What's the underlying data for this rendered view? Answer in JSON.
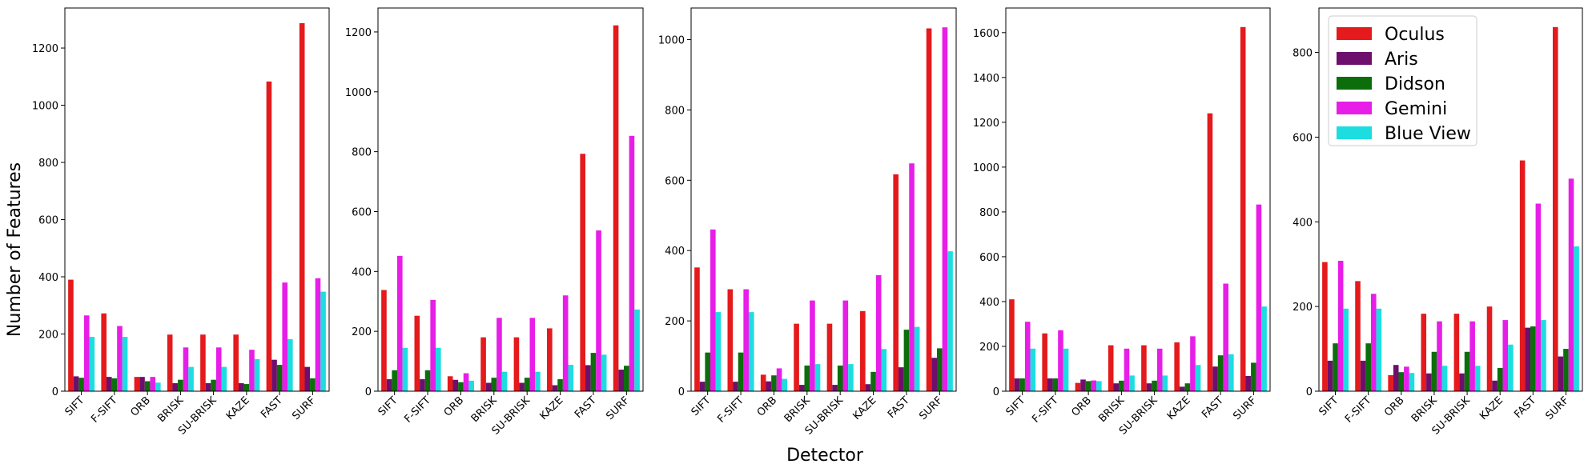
{
  "figure": {
    "ylabel": "Number of Features",
    "xlabel": "Detector"
  },
  "legend": {
    "placement": "top-left of fifth panel",
    "entries": [
      "Oculus",
      "Aris",
      "Didson",
      "Gemini",
      "Blue View"
    ]
  },
  "colors": {
    "Oculus": "#e41a1c",
    "Aris": "#6e0f6e",
    "Didson": "#0b6e0b",
    "Gemini": "#e71ee7",
    "Blue View": "#1ddde0"
  },
  "chart_data": [
    {
      "type": "bar",
      "categories": [
        "SIFT",
        "F-SIFT",
        "ORB",
        "BRISK",
        "SU-BRISK",
        "KAZE",
        "FAST",
        "SURF"
      ],
      "ylim": [
        0,
        1340
      ],
      "yticks": [
        0,
        200,
        400,
        600,
        800,
        1000,
        1200
      ],
      "series": [
        {
          "name": "Oculus",
          "values": [
            390,
            272,
            50,
            198,
            198,
            198,
            1083,
            1287
          ]
        },
        {
          "name": "Aris",
          "values": [
            52,
            50,
            50,
            28,
            28,
            28,
            110,
            85
          ]
        },
        {
          "name": "Didson",
          "values": [
            47,
            45,
            35,
            40,
            40,
            25,
            92,
            45
          ]
        },
        {
          "name": "Gemini",
          "values": [
            265,
            228,
            50,
            153,
            153,
            145,
            380,
            395
          ]
        },
        {
          "name": "Blue View",
          "values": [
            190,
            190,
            30,
            85,
            85,
            112,
            182,
            348
          ]
        }
      ]
    },
    {
      "type": "bar",
      "categories": [
        "SIFT",
        "F-SIFT",
        "ORB",
        "BRISK",
        "SU-BRISK",
        "KAZE",
        "FAST",
        "SURF"
      ],
      "ylim": [
        0,
        1280
      ],
      "yticks": [
        0,
        200,
        400,
        600,
        800,
        1000,
        1200
      ],
      "series": [
        {
          "name": "Oculus",
          "values": [
            338,
            252,
            50,
            180,
            180,
            210,
            793,
            1222
          ]
        },
        {
          "name": "Aris",
          "values": [
            40,
            40,
            38,
            28,
            28,
            20,
            87,
            72
          ]
        },
        {
          "name": "Didson",
          "values": [
            70,
            70,
            30,
            45,
            45,
            40,
            128,
            85
          ]
        },
        {
          "name": "Gemini",
          "values": [
            452,
            305,
            60,
            245,
            245,
            320,
            537,
            853
          ]
        },
        {
          "name": "Blue View",
          "values": [
            145,
            145,
            35,
            65,
            65,
            88,
            122,
            273
          ]
        }
      ]
    },
    {
      "type": "bar",
      "categories": [
        "SIFT",
        "F-SIFT",
        "ORB",
        "BRISK",
        "SU-BRISK",
        "KAZE",
        "FAST",
        "SURF"
      ],
      "ylim": [
        0,
        1090
      ],
      "yticks": [
        0,
        200,
        400,
        600,
        800,
        1000
      ],
      "series": [
        {
          "name": "Oculus",
          "values": [
            352,
            290,
            47,
            192,
            192,
            228,
            617,
            1032
          ]
        },
        {
          "name": "Aris",
          "values": [
            27,
            27,
            28,
            18,
            18,
            20,
            68,
            95
          ]
        },
        {
          "name": "Didson",
          "values": [
            110,
            110,
            45,
            73,
            73,
            55,
            175,
            122
          ]
        },
        {
          "name": "Gemini",
          "values": [
            460,
            290,
            65,
            258,
            258,
            330,
            648,
            1035
          ]
        },
        {
          "name": "Blue View",
          "values": [
            225,
            225,
            35,
            77,
            77,
            120,
            183,
            398
          ]
        }
      ]
    },
    {
      "type": "bar",
      "categories": [
        "SIFT",
        "F-SIFT",
        "ORB",
        "BRISK",
        "SU-BRISK",
        "KAZE",
        "FAST",
        "SURF"
      ],
      "ylim": [
        0,
        1710
      ],
      "yticks": [
        0,
        200,
        400,
        600,
        800,
        1000,
        1200,
        1400,
        1600
      ],
      "series": [
        {
          "name": "Oculus",
          "values": [
            410,
            258,
            37,
            205,
            205,
            218,
            1240,
            1625
          ]
        },
        {
          "name": "Aris",
          "values": [
            57,
            57,
            52,
            35,
            35,
            20,
            110,
            68
          ]
        },
        {
          "name": "Didson",
          "values": [
            57,
            57,
            45,
            47,
            47,
            35,
            160,
            127
          ]
        },
        {
          "name": "Gemini",
          "values": [
            310,
            272,
            48,
            190,
            190,
            245,
            480,
            833
          ]
        },
        {
          "name": "Blue View",
          "values": [
            190,
            190,
            45,
            70,
            70,
            117,
            165,
            378
          ]
        }
      ]
    },
    {
      "type": "bar",
      "categories": [
        "SIFT",
        "F-SIFT",
        "ORB",
        "BRISK",
        "SU-BRISK",
        "KAZE",
        "FAST",
        "SURF"
      ],
      "ylim": [
        0,
        905
      ],
      "yticks": [
        0,
        200,
        400,
        600,
        800
      ],
      "series": [
        {
          "name": "Oculus",
          "values": [
            305,
            260,
            38,
            183,
            183,
            200,
            545,
            860
          ]
        },
        {
          "name": "Aris",
          "values": [
            72,
            72,
            62,
            42,
            42,
            25,
            150,
            82
          ]
        },
        {
          "name": "Didson",
          "values": [
            113,
            113,
            45,
            93,
            93,
            55,
            153,
            100
          ]
        },
        {
          "name": "Gemini",
          "values": [
            308,
            230,
            58,
            165,
            165,
            168,
            443,
            502
          ]
        },
        {
          "name": "Blue View",
          "values": [
            195,
            195,
            43,
            60,
            60,
            110,
            168,
            342
          ]
        }
      ]
    }
  ]
}
